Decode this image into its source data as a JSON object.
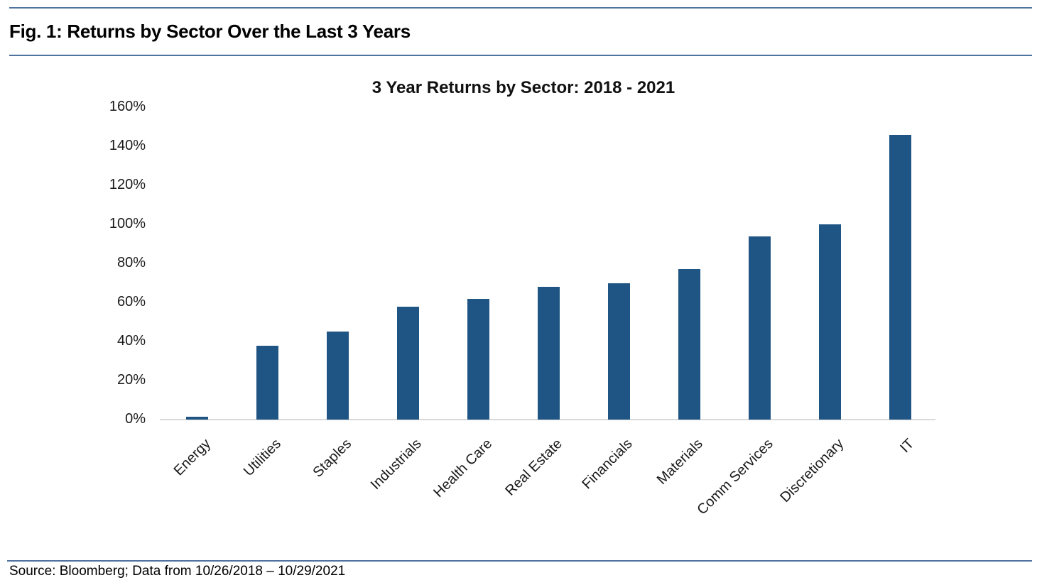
{
  "header": {
    "caption": "Fig. 1: Returns by Sector Over the Last 3 Years"
  },
  "chart_data": {
    "type": "bar",
    "title": "3 Year Returns by Sector: 2018 - 2021",
    "categories": [
      "Energy",
      "Utilities",
      "Staples",
      "Industrials",
      "Health Care",
      "Real Estate",
      "Financials",
      "Materials",
      "Comm Services",
      "Discretionary",
      "IT"
    ],
    "values": [
      1.5,
      38,
      45,
      58,
      62,
      68,
      70,
      77,
      94,
      100,
      146
    ],
    "value_unit": "%",
    "xlabel": "",
    "ylabel": "",
    "ylim": [
      0,
      160
    ],
    "ytick_step": 20,
    "ytick_suffix": "%",
    "grid": false,
    "legend": null,
    "x_label_rotation_deg": 45
  },
  "footer": {
    "source": "Source: Bloomberg; Data from 10/26/2018 – 10/29/2021"
  },
  "colors": {
    "bar": "#1f5584",
    "axis_line": "#d9d9d9",
    "rule": "#4e739e",
    "text": "#000000"
  }
}
